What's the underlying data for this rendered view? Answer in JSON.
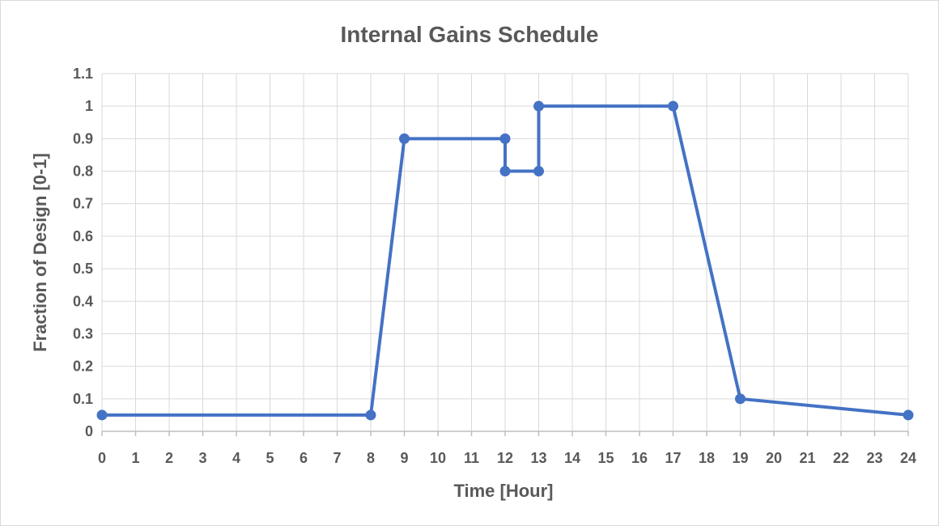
{
  "chart_data": {
    "type": "line",
    "title": "Internal Gains Schedule",
    "xlabel": "Time [Hour]",
    "ylabel": "Fraction of Design [0-1]",
    "xlim": [
      0,
      24
    ],
    "ylim": [
      0,
      1.1
    ],
    "x_ticks": [
      "0",
      "1",
      "2",
      "3",
      "4",
      "5",
      "6",
      "7",
      "8",
      "9",
      "10",
      "11",
      "12",
      "13",
      "14",
      "15",
      "16",
      "17",
      "18",
      "19",
      "20",
      "21",
      "22",
      "23",
      "24"
    ],
    "y_ticks": [
      "0",
      "0.1",
      "0.2",
      "0.3",
      "0.4",
      "0.5",
      "0.6",
      "0.7",
      "0.8",
      "0.9",
      "1",
      "1.1"
    ],
    "grid": true,
    "legend": "none",
    "series": [
      {
        "color": "#4472c4",
        "points": [
          {
            "x": 0,
            "y": 0.05
          },
          {
            "x": 8,
            "y": 0.05
          },
          {
            "x": 9,
            "y": 0.9
          },
          {
            "x": 12,
            "y": 0.9
          },
          {
            "x": 12,
            "y": 0.8
          },
          {
            "x": 13,
            "y": 0.8
          },
          {
            "x": 13,
            "y": 1.0
          },
          {
            "x": 17,
            "y": 1.0
          },
          {
            "x": 19,
            "y": 0.1
          },
          {
            "x": 24,
            "y": 0.05
          }
        ]
      }
    ]
  }
}
